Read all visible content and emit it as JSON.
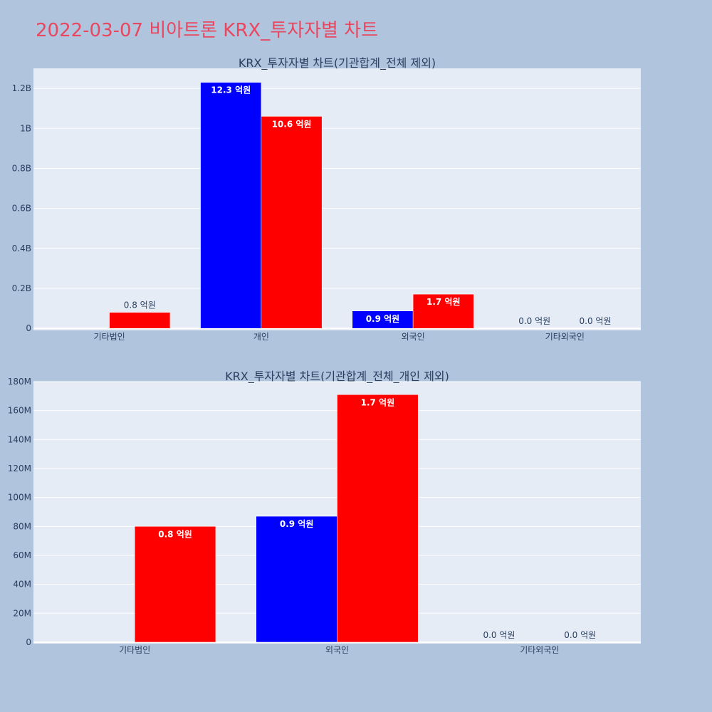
{
  "page": {
    "title": "2022-03-07 비아트론 KRX_투자자별 차트"
  },
  "colors": {
    "buy": "#0000ff",
    "sell": "#ff0000",
    "plot_bg": "#e5ecf6",
    "page_bg": "#b0c4de",
    "title": "#e8475f"
  },
  "chart_data": [
    {
      "type": "bar",
      "title": "KRX_투자자별 차트(기관합계_전체 제외)",
      "categories": [
        "기타법인",
        "개인",
        "외국인",
        "기타외국인"
      ],
      "series": [
        {
          "values": [
            0,
            1230000000,
            87000000,
            0
          ],
          "labels": [
            "",
            "12.3 억원",
            "0.9 억원",
            "0.0 억원"
          ]
        },
        {
          "values": [
            80000000,
            1060000000,
            171000000,
            0
          ],
          "labels": [
            "0.8 억원",
            "10.6 억원",
            "1.7 억원",
            "0.0 억원"
          ]
        }
      ],
      "ylim": [
        -10000000,
        1300000000
      ],
      "yticks": [
        0,
        200000000,
        400000000,
        600000000,
        800000000,
        1000000000,
        1200000000
      ],
      "ytick_labels": [
        "0",
        "0.2B",
        "0.4B",
        "0.6B",
        "0.8B",
        "1B",
        "1.2B"
      ],
      "grid": true
    },
    {
      "type": "bar",
      "title": "KRX_투자자별 차트(기관합계_전체_개인 제외)",
      "categories": [
        "기타법인",
        "외국인",
        "기타외국인"
      ],
      "series": [
        {
          "values": [
            0,
            87000000,
            0
          ],
          "labels": [
            "",
            "0.9 억원",
            "0.0 억원"
          ]
        },
        {
          "values": [
            80000000,
            171000000,
            0
          ],
          "labels": [
            "0.8 억원",
            "1.7 억원",
            "0.0 억원"
          ]
        }
      ],
      "ylim": [
        -1000000,
        180000000
      ],
      "yticks": [
        0,
        20000000,
        40000000,
        60000000,
        80000000,
        100000000,
        120000000,
        140000000,
        160000000,
        180000000
      ],
      "ytick_labels": [
        "0",
        "20M",
        "40M",
        "60M",
        "80M",
        "100M",
        "120M",
        "140M",
        "160M",
        "180M"
      ],
      "grid": true
    }
  ]
}
